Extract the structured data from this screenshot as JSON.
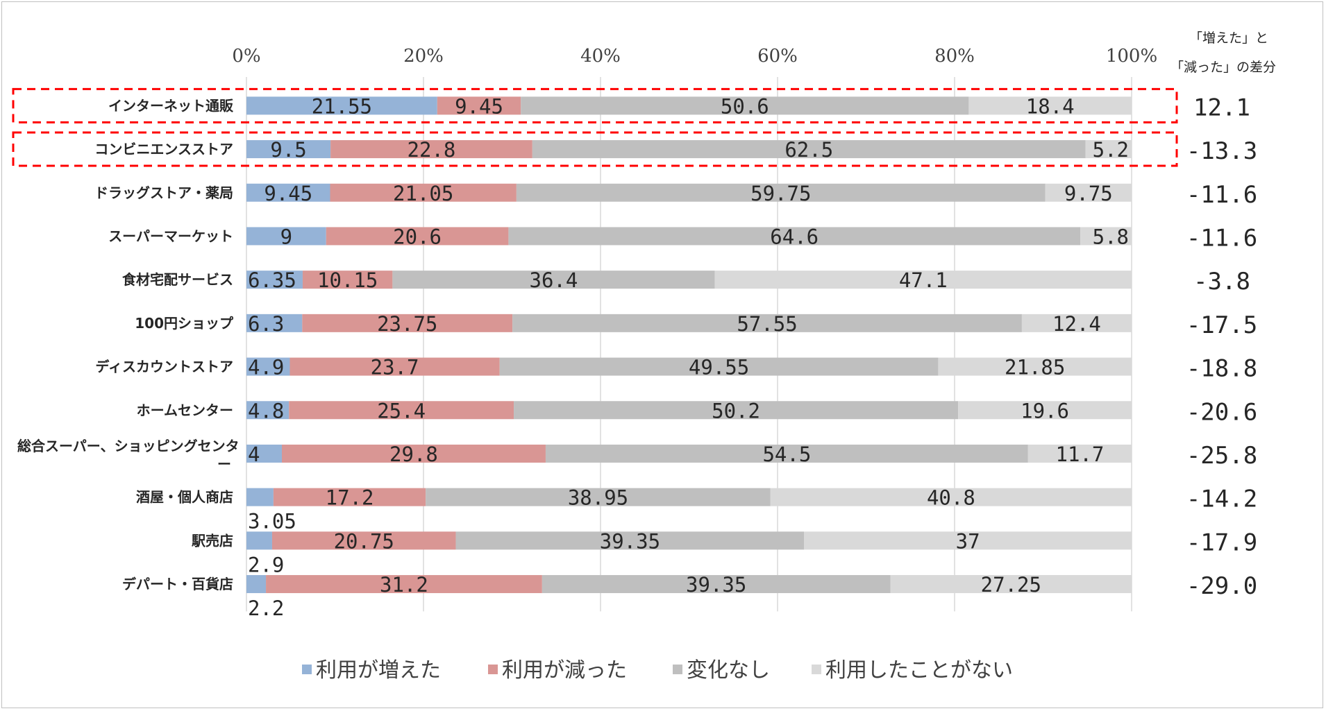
{
  "chart_data": {
    "type": "bar",
    "stacked": "percent",
    "orientation": "horizontal",
    "xlim": [
      0,
      100
    ],
    "x_ticks": [
      "0%",
      "20%",
      "40%",
      "60%",
      "80%",
      "100%"
    ],
    "categories": [
      "インターネット通販",
      "コンビニエンスストア",
      "ドラッグストア・薬局",
      "スーパーマーケット",
      "食材宅配サービス",
      "100円ショップ",
      "ディスカウントストア",
      "ホームセンター",
      "総合スーパー、ショッピングセンター",
      "酒屋・個人商店",
      "駅売店",
      "デパート・百貨店"
    ],
    "series": [
      {
        "name": "利用が増えた",
        "color": "#95b3d7",
        "values": [
          21.55,
          9.5,
          9.45,
          9,
          6.35,
          6.3,
          4.9,
          4.8,
          4,
          3.05,
          2.9,
          2.2
        ]
      },
      {
        "name": "利用が減った",
        "color": "#d99694",
        "values": [
          9.45,
          22.8,
          21.05,
          20.6,
          10.15,
          23.75,
          23.7,
          25.4,
          29.8,
          17.2,
          20.75,
          31.2
        ]
      },
      {
        "name": "変化なし",
        "color": "#bfbfbf",
        "values": [
          50.6,
          62.5,
          59.75,
          64.6,
          36.4,
          57.55,
          49.55,
          50.2,
          54.5,
          38.95,
          39.35,
          39.35
        ]
      },
      {
        "name": "利用したことがない",
        "color": "#d9d9d9",
        "values": [
          18.4,
          5.2,
          9.75,
          5.8,
          47.1,
          12.4,
          21.85,
          19.6,
          11.7,
          40.8,
          37,
          27.25
        ]
      }
    ],
    "difference": {
      "header": [
        "「増えた」と",
        "「減った」の差分"
      ],
      "values": [
        "12.1",
        "-13.3",
        "-11.6",
        "-11.6",
        "-3.8",
        "-17.5",
        "-18.8",
        "-20.6",
        "-25.8",
        "-14.2",
        "-17.9",
        "-29.0"
      ]
    },
    "highlighted_categories": [
      "インターネット通販",
      "コンビニエンスストア"
    ],
    "highlight_color": "#ff0000",
    "grid": true,
    "legend_position": "bottom"
  }
}
